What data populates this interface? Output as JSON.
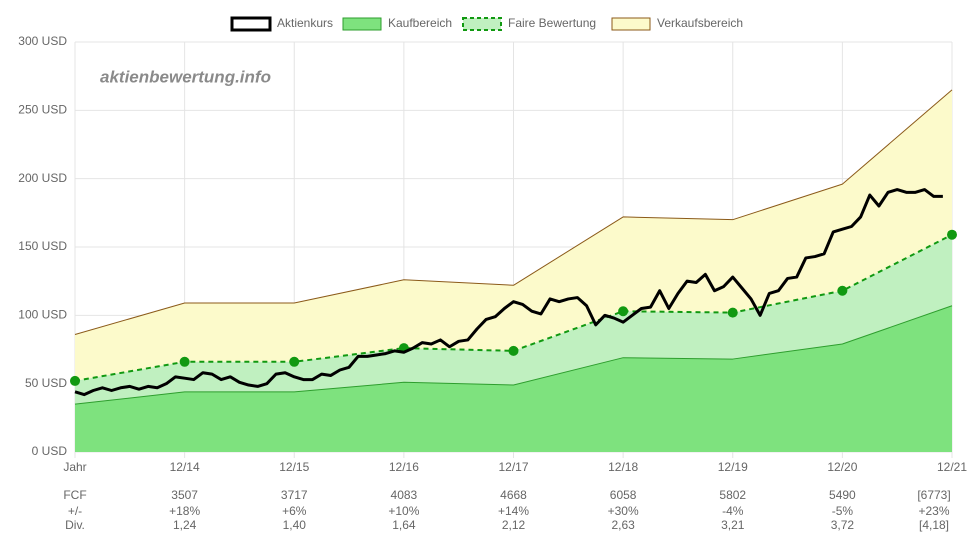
{
  "chart_data": {
    "type": "line",
    "watermark": "aktienbewertung.info",
    "xlim": [
      0,
      96
    ],
    "xticks": [
      {
        "value": 0,
        "label": "Jahr"
      },
      {
        "value": 12,
        "label": "12/14"
      },
      {
        "value": 24,
        "label": "12/15"
      },
      {
        "value": 36,
        "label": "12/16"
      },
      {
        "value": 48,
        "label": "12/17"
      },
      {
        "value": 60,
        "label": "12/18"
      },
      {
        "value": 72,
        "label": "12/19"
      },
      {
        "value": 84,
        "label": "12/20"
      },
      {
        "value": 96,
        "label": "12/21"
      }
    ],
    "ylim": [
      0,
      300
    ],
    "yticks": [
      {
        "value": 0,
        "label": "0 USD"
      },
      {
        "value": 50,
        "label": "50 USD"
      },
      {
        "value": 100,
        "label": "100 USD"
      },
      {
        "value": 150,
        "label": "150 USD"
      },
      {
        "value": 200,
        "label": "200 USD"
      },
      {
        "value": 250,
        "label": "250 USD"
      },
      {
        "value": 300,
        "label": "300 USD"
      }
    ],
    "grid": true,
    "legend": "top",
    "series": [
      {
        "name": "Aktienkurs",
        "color": "#000000",
        "x": [
          0,
          1,
          2,
          3,
          4,
          5,
          6,
          7,
          8,
          9,
          10,
          11,
          12,
          13,
          14,
          15,
          16,
          17,
          18,
          19,
          20,
          21,
          22,
          23,
          24,
          25,
          26,
          27,
          28,
          29,
          30,
          31,
          32,
          33,
          34,
          35,
          36,
          37,
          38,
          39,
          40,
          41,
          42,
          43,
          44,
          45,
          46,
          47,
          48,
          49,
          50,
          51,
          52,
          53,
          54,
          55,
          56,
          57,
          58,
          59,
          60,
          61,
          62,
          63,
          64,
          65,
          66,
          67,
          68,
          69,
          70,
          71,
          72,
          73,
          74,
          75,
          76,
          77,
          78,
          79,
          80,
          81,
          82,
          83,
          84,
          85,
          86,
          87,
          88,
          89,
          90,
          91,
          92,
          93,
          94,
          95
        ],
        "values": [
          44,
          42,
          45,
          47,
          45,
          47,
          48,
          46,
          48,
          47,
          50,
          55,
          54,
          53,
          58,
          57,
          53,
          55,
          51,
          49,
          48,
          50,
          57,
          58,
          55,
          53,
          53,
          57,
          56,
          60,
          62,
          70,
          70,
          71,
          72,
          74,
          73,
          76,
          80,
          79,
          82,
          77,
          81,
          82,
          90,
          97,
          99,
          105,
          110,
          108,
          103,
          101,
          112,
          110,
          112,
          113,
          107,
          93,
          100,
          98,
          95,
          100,
          105,
          106,
          118,
          105,
          116,
          125,
          124,
          130,
          118,
          121,
          128,
          120,
          112,
          100,
          116,
          118,
          127,
          128,
          142,
          143,
          145,
          161,
          163,
          165,
          172,
          188,
          180,
          190,
          192,
          190,
          190,
          192,
          187,
          187
        ]
      },
      {
        "name": "Kaufbereich",
        "color": "#2e9e2e",
        "fill": "#7ee27e",
        "x": [
          0,
          12,
          24,
          36,
          48,
          60,
          72,
          84,
          96
        ],
        "values": [
          35,
          44,
          44,
          51,
          49,
          69,
          68,
          79,
          107
        ]
      },
      {
        "name": "Faire Bewertung",
        "color": "#119911",
        "fill": "#c0f0c0",
        "dashed": true,
        "markers": true,
        "x": [
          0,
          12,
          24,
          36,
          48,
          60,
          72,
          84,
          96
        ],
        "values": [
          52,
          66,
          66,
          76,
          74,
          103,
          102,
          118,
          159
        ]
      },
      {
        "name": "Verkaufsbereich",
        "color": "#8b5a1a",
        "fill": "#fcfacb",
        "x": [
          0,
          12,
          24,
          36,
          48,
          60,
          72,
          84,
          96
        ],
        "values": [
          86,
          109,
          109,
          126,
          122,
          172,
          170,
          196,
          265
        ]
      }
    ],
    "table": {
      "row_labels": [
        "FCF",
        "+/-",
        "Div."
      ],
      "rows": [
        [
          "3507",
          "3717",
          "4083",
          "4668",
          "6058",
          "5802",
          "5490",
          "[6773]"
        ],
        [
          "+18%",
          "+6%",
          "+10%",
          "+14%",
          "+30%",
          "-4%",
          "-5%",
          "+23%"
        ],
        [
          "1,24",
          "1,40",
          "1,64",
          "2,12",
          "2,63",
          "3,21",
          "3,72",
          "[4,18]"
        ]
      ]
    }
  }
}
